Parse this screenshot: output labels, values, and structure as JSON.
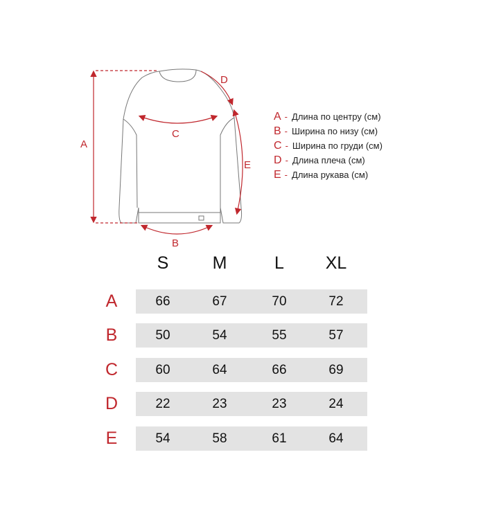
{
  "accent_color": "#c0272d",
  "diagram": {
    "labels": [
      "A",
      "B",
      "C",
      "D",
      "E"
    ]
  },
  "legend": [
    {
      "letter": "A",
      "text": "Длина по центру (см)"
    },
    {
      "letter": "B",
      "text": "Ширина по низу (см)"
    },
    {
      "letter": "C",
      "text": "Ширина по груди (см)"
    },
    {
      "letter": "D",
      "text": "Длина плеча (см)"
    },
    {
      "letter": "E",
      "text": "Длина рукава (см)"
    }
  ],
  "table": {
    "sizes": [
      "S",
      "M",
      "L",
      "XL"
    ],
    "rows": [
      {
        "label": "A",
        "values": [
          "66",
          "67",
          "70",
          "72"
        ]
      },
      {
        "label": "B",
        "values": [
          "50",
          "54",
          "55",
          "57"
        ]
      },
      {
        "label": "C",
        "values": [
          "60",
          "64",
          "66",
          "69"
        ]
      },
      {
        "label": "D",
        "values": [
          "22",
          "23",
          "23",
          "24"
        ]
      },
      {
        "label": "E",
        "values": [
          "54",
          "58",
          "61",
          "64"
        ]
      }
    ]
  }
}
